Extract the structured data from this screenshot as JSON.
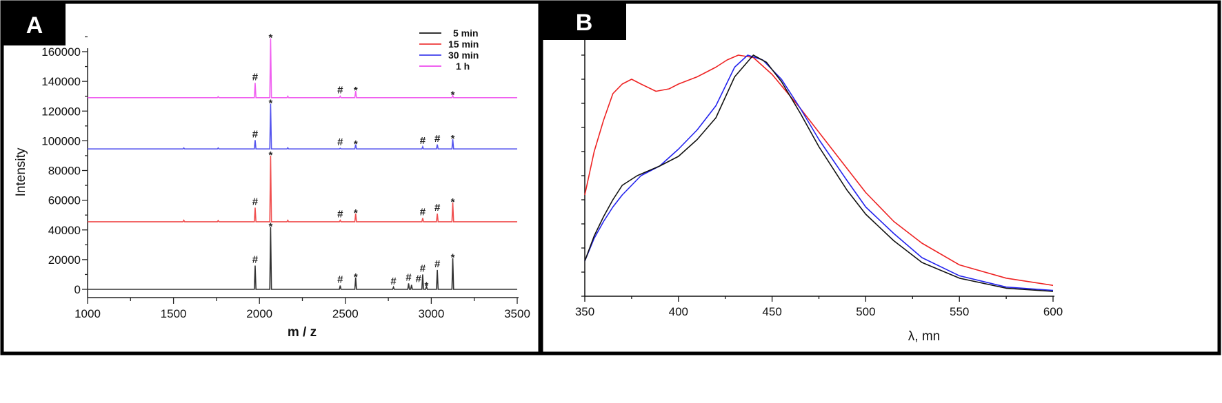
{
  "chart_data": [
    {
      "panel_label": "A",
      "type": "line",
      "title": "",
      "xlabel": "m / z",
      "ylabel": "Intensity",
      "xlim": [
        1000,
        3500
      ],
      "ylim": [
        -3000,
        172000
      ],
      "xticks": [
        1000,
        1500,
        2000,
        2500,
        3000,
        3500
      ],
      "yticks": [
        0,
        20000,
        40000,
        60000,
        80000,
        100000,
        120000,
        140000,
        160000
      ],
      "legend_position": "top-right",
      "series": [
        {
          "name": "5 min",
          "color": "#333333",
          "baseline": 0,
          "peaks": [
            [
              1975,
              16000,
              "#"
            ],
            [
              2065,
              42000,
              "*"
            ],
            [
              2470,
              2500,
              "#"
            ],
            [
              2560,
              8000,
              "*"
            ],
            [
              2780,
              1500,
              "#"
            ],
            [
              2868,
              4000,
              "#"
            ],
            [
              2885,
              3000,
              "#"
            ],
            [
              2950,
              10000,
              "#"
            ],
            [
              2972,
              2000,
              "*"
            ],
            [
              3035,
              13000,
              "#"
            ],
            [
              3125,
              21000,
              "*"
            ]
          ]
        },
        {
          "name": "15 min",
          "color": "#f05050",
          "baseline": 45500,
          "peaks": [
            [
              1560,
              46500,
              ""
            ],
            [
              1760,
              46300,
              ""
            ],
            [
              1975,
              55000,
              "#"
            ],
            [
              2065,
              90000,
              "*"
            ],
            [
              2165,
              46500,
              ""
            ],
            [
              2470,
              46500,
              "#"
            ],
            [
              2560,
              51000,
              "*"
            ],
            [
              2950,
              48000,
              "#"
            ],
            [
              3035,
              51000,
              "#"
            ],
            [
              3125,
              58500,
              "*"
            ]
          ]
        },
        {
          "name": "30 min",
          "color": "#5555ee",
          "baseline": 94500,
          "peaks": [
            [
              1560,
              95200,
              ""
            ],
            [
              1760,
              95200,
              ""
            ],
            [
              1975,
              100500,
              "#"
            ],
            [
              2065,
              125000,
              "*"
            ],
            [
              2165,
              95300,
              ""
            ],
            [
              2470,
              95000,
              "#"
            ],
            [
              2560,
              97500,
              "*"
            ],
            [
              2950,
              96000,
              "#"
            ],
            [
              3035,
              97500,
              "#"
            ],
            [
              3125,
              101000,
              "*"
            ]
          ]
        },
        {
          "name": "1 h",
          "color": "#f060f0",
          "baseline": 129000,
          "peaks": [
            [
              1760,
              129700,
              ""
            ],
            [
              1975,
              139000,
              "#"
            ],
            [
              2065,
              169000,
              "*"
            ],
            [
              2165,
              130000,
              ""
            ],
            [
              2470,
              130000,
              "#"
            ],
            [
              2560,
              133500,
              "*"
            ],
            [
              3125,
              130500,
              "*"
            ]
          ]
        }
      ]
    },
    {
      "panel_label": "B",
      "type": "line",
      "title": "",
      "xlabel": "λ, mn",
      "ylabel": "",
      "xlim": [
        350,
        600
      ],
      "ylim": [
        0,
        1
      ],
      "xticks": [
        350,
        400,
        450,
        500,
        550,
        600
      ],
      "series": [
        {
          "name": "red",
          "color": "#ee2222",
          "x": [
            350,
            355,
            360,
            365,
            370,
            375,
            380,
            388,
            395,
            400,
            410,
            420,
            426,
            432,
            440,
            450,
            465,
            475,
            490,
            500,
            515,
            530,
            550,
            575,
            600
          ],
          "y": [
            0.42,
            0.6,
            0.73,
            0.84,
            0.88,
            0.9,
            0.88,
            0.85,
            0.86,
            0.88,
            0.91,
            0.95,
            0.98,
            1.0,
            0.99,
            0.92,
            0.78,
            0.68,
            0.53,
            0.43,
            0.31,
            0.22,
            0.13,
            0.075,
            0.045
          ]
        },
        {
          "name": "blue",
          "color": "#2222ee",
          "x": [
            350,
            355,
            360,
            365,
            370,
            380,
            390,
            400,
            410,
            420,
            430,
            437,
            445,
            455,
            465,
            475,
            490,
            500,
            515,
            530,
            550,
            575,
            600
          ],
          "y": [
            0.146,
            0.24,
            0.31,
            0.37,
            0.42,
            0.5,
            0.54,
            0.61,
            0.69,
            0.79,
            0.95,
            1.0,
            0.98,
            0.9,
            0.78,
            0.65,
            0.48,
            0.37,
            0.26,
            0.16,
            0.085,
            0.038,
            0.024
          ]
        },
        {
          "name": "black",
          "color": "#111111",
          "x": [
            350,
            355,
            360,
            365,
            370,
            378,
            390,
            400,
            410,
            420,
            430,
            440,
            447,
            455,
            465,
            475,
            490,
            500,
            515,
            530,
            550,
            575,
            600
          ],
          "y": [
            0.146,
            0.25,
            0.33,
            0.4,
            0.46,
            0.5,
            0.54,
            0.58,
            0.65,
            0.74,
            0.91,
            1.0,
            0.97,
            0.89,
            0.76,
            0.62,
            0.44,
            0.34,
            0.23,
            0.14,
            0.075,
            0.033,
            0.02
          ]
        }
      ]
    }
  ]
}
